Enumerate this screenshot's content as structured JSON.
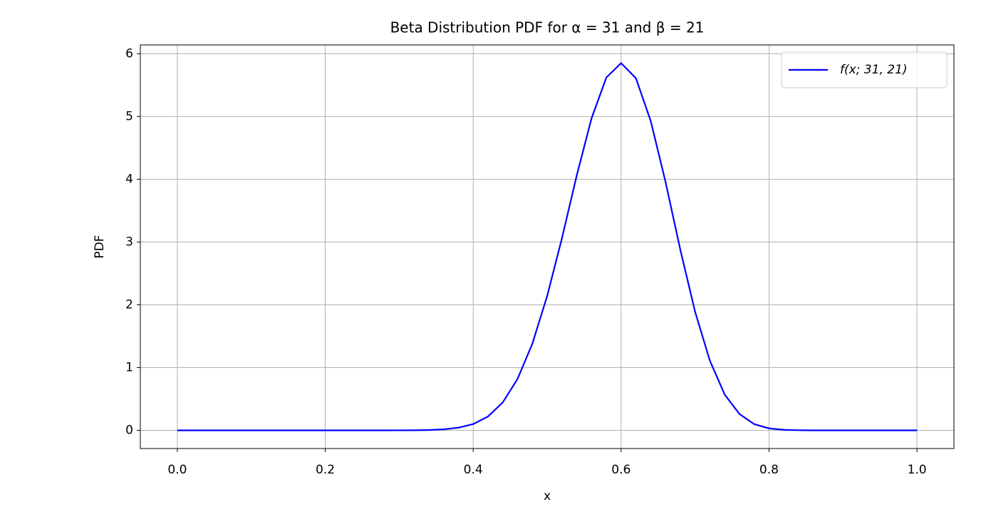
{
  "chart_data": {
    "type": "line",
    "title": "Beta Distribution PDF for α = 31 and β = 21",
    "x_label": "x",
    "y_label": "PDF",
    "x": [
      0,
      0.02,
      0.04,
      0.06,
      0.08,
      0.1,
      0.12,
      0.14,
      0.16,
      0.18,
      0.2,
      0.22,
      0.24,
      0.26,
      0.28,
      0.3,
      0.32,
      0.34,
      0.36,
      0.38,
      0.4,
      0.42,
      0.44,
      0.46,
      0.48,
      0.5,
      0.52,
      0.54,
      0.56,
      0.58,
      0.6,
      0.62,
      0.64,
      0.66,
      0.68,
      0.7,
      0.72,
      0.74,
      0.76,
      0.78,
      0.8,
      0.82,
      0.84,
      0.86,
      0.88,
      0.9,
      0.92,
      0.94,
      0.96,
      0.98,
      1
    ],
    "series": [
      {
        "name": "f(x; 31, 21)",
        "color": "#0000ff",
        "values": [
          0,
          0,
          0,
          0,
          0,
          0,
          0,
          0,
          0,
          0,
          0,
          0,
          0,
          0,
          0,
          0.0004,
          0.0015,
          0.005,
          0.016,
          0.042,
          0.1,
          0.22,
          0.445,
          0.82,
          1.38,
          2.14,
          3.06,
          4.06,
          4.97,
          5.62,
          5.85,
          5.61,
          4.93,
          3.96,
          2.88,
          1.89,
          1.11,
          0.57,
          0.26,
          0.098,
          0.031,
          0.008,
          0.0016,
          0,
          0,
          0,
          0,
          0,
          0,
          0,
          0
        ]
      }
    ],
    "xlim": [
      -0.05,
      1.05
    ],
    "ylim": [
      -0.29,
      6.14
    ],
    "xticks": [
      {
        "value": 0,
        "label": "0.0"
      },
      0.2,
      0.4,
      0.6,
      0.8,
      {
        "value": 1,
        "label": "1.0"
      }
    ],
    "yticks": [
      0,
      1,
      2,
      3,
      4,
      5,
      6
    ],
    "grid": true,
    "legend": "upper right"
  }
}
